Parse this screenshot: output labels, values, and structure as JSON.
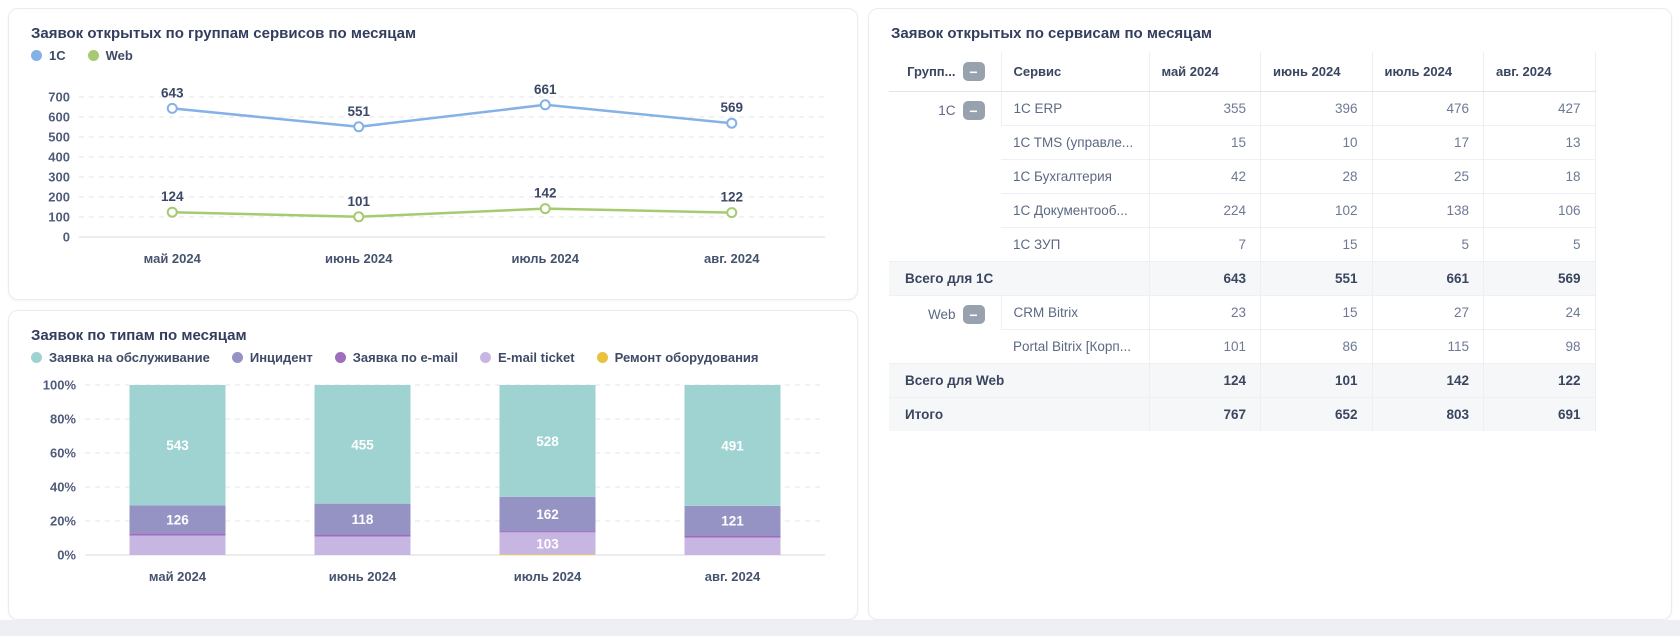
{
  "page": {
    "background": "#ffffff",
    "footer_strip_color": "#edeff2"
  },
  "chart_data": [
    {
      "id": "line",
      "type": "line",
      "title": "Заявок открытых по группам сервисов по месяцам",
      "categories": [
        "май 2024",
        "июнь 2024",
        "июль 2024",
        "авг. 2024"
      ],
      "series": [
        {
          "name": "1C",
          "color": "#85b2e6",
          "values": [
            643,
            551,
            661,
            569
          ]
        },
        {
          "name": "Web",
          "color": "#a5ca70",
          "values": [
            124,
            101,
            142,
            122
          ]
        }
      ],
      "ylim": [
        0,
        700
      ],
      "y_tick_step": 100,
      "grid": "dashed-horizontal",
      "legend_position": "top-left",
      "marker": "open-circle",
      "data_labels": true
    },
    {
      "id": "stacked",
      "type": "bar",
      "stack": "percent",
      "title": "Заявок по типам по месяцам",
      "categories": [
        "май 2024",
        "июнь 2024",
        "июль 2024",
        "авг. 2024"
      ],
      "series": [
        {
          "name": "Заявка на обслуживание",
          "color": "#9ed3d1",
          "values": [
            543,
            455,
            528,
            491
          ],
          "labels_visible": [
            true,
            true,
            true,
            true
          ],
          "estimated": false
        },
        {
          "name": "Инцидент",
          "color": "#9592c4",
          "values": [
            126,
            118,
            162,
            121
          ],
          "labels_visible": [
            true,
            true,
            true,
            true
          ],
          "estimated": false
        },
        {
          "name": "Заявка по e-mail",
          "color": "#9f6dbd",
          "values": [
            10,
            8,
            6,
            8
          ],
          "labels_visible": [
            false,
            false,
            false,
            false
          ],
          "estimated": true
        },
        {
          "name": "E-mail ticket",
          "color": "#c7b6e2",
          "values": [
            88,
            71,
            103,
            71
          ],
          "labels_visible": [
            false,
            false,
            true,
            false
          ],
          "estimated": true
        },
        {
          "name": "Ремонт оборудования",
          "color": "#e9c13e",
          "values": [
            0,
            0,
            4,
            0
          ],
          "labels_visible": [
            false,
            false,
            false,
            false
          ],
          "estimated": true
        }
      ],
      "y_ticks_percent": [
        0,
        20,
        40,
        60,
        80,
        100
      ],
      "grid": "dashed-horizontal",
      "legend_position": "top-left"
    },
    {
      "id": "services-table",
      "type": "table",
      "title": "Заявок открытых по сервисам по месяцам",
      "columns": [
        "Групп...",
        "Сервис",
        "май 2024",
        "июнь 2024",
        "июль 2024",
        "авг. 2024"
      ],
      "rows": [
        {
          "type": "data",
          "group": "1C",
          "group_button": true,
          "service": "1C ERP",
          "values": [
            355,
            396,
            476,
            427
          ]
        },
        {
          "type": "data",
          "service": "1C TMS (управле...",
          "values": [
            15,
            10,
            17,
            13
          ]
        },
        {
          "type": "data",
          "service": "1C Бухгалтерия",
          "values": [
            42,
            28,
            25,
            18
          ]
        },
        {
          "type": "data",
          "service": "1C Документооб...",
          "values": [
            224,
            102,
            138,
            106
          ]
        },
        {
          "type": "data",
          "service": "1C ЗУП",
          "values": [
            7,
            15,
            5,
            5
          ]
        },
        {
          "type": "total",
          "label": "Всего для 1C",
          "values": [
            643,
            551,
            661,
            569
          ]
        },
        {
          "type": "data",
          "group": "Web",
          "group_button": true,
          "service": "CRM Bitrix",
          "values": [
            23,
            15,
            27,
            24
          ]
        },
        {
          "type": "data",
          "service": "Portal Bitrix [Корп...",
          "values": [
            101,
            86,
            115,
            98
          ]
        },
        {
          "type": "total",
          "label": "Всего для Web",
          "values": [
            124,
            101,
            142,
            122
          ]
        },
        {
          "type": "total",
          "label": "Итого",
          "values": [
            767,
            652,
            803,
            691
          ]
        }
      ],
      "collapse_icon": "minus-icon"
    }
  ]
}
